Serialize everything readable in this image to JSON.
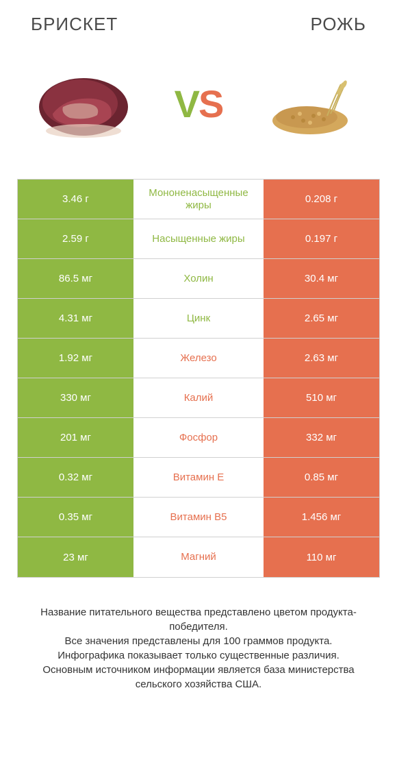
{
  "header": {
    "left": "БРИСКЕТ",
    "right": "РОЖЬ"
  },
  "vs": {
    "v": "V",
    "s": "S"
  },
  "colors": {
    "green": "#8fb843",
    "orange": "#e6704f",
    "border": "#d0d0d0",
    "text_dark": "#4a4a4a"
  },
  "rows": [
    {
      "left": "3.46 г",
      "mid": "Мононенасыщенные жиры",
      "right": "0.208 г",
      "winner": "left"
    },
    {
      "left": "2.59 г",
      "mid": "Насыщенные жиры",
      "right": "0.197 г",
      "winner": "left"
    },
    {
      "left": "86.5 мг",
      "mid": "Холин",
      "right": "30.4 мг",
      "winner": "left"
    },
    {
      "left": "4.31 мг",
      "mid": "Цинк",
      "right": "2.65 мг",
      "winner": "left"
    },
    {
      "left": "1.92 мг",
      "mid": "Железо",
      "right": "2.63 мг",
      "winner": "right"
    },
    {
      "left": "330 мг",
      "mid": "Калий",
      "right": "510 мг",
      "winner": "right"
    },
    {
      "left": "201 мг",
      "mid": "Фосфор",
      "right": "332 мг",
      "winner": "right"
    },
    {
      "left": "0.32 мг",
      "mid": "Витамин E",
      "right": "0.85 мг",
      "winner": "right"
    },
    {
      "left": "0.35 мг",
      "mid": "Витамин B5",
      "right": "1.456 мг",
      "winner": "right"
    },
    {
      "left": "23 мг",
      "mid": "Магний",
      "right": "110 мг",
      "winner": "right"
    }
  ],
  "footer": "Название питательного вещества представлено цветом продукта-победителя.\nВсе значения представлены для 100 граммов продукта.\nИнфографика показывает только существенные различия.\nОсновным источником информации является база министерства сельского хозяйства США."
}
